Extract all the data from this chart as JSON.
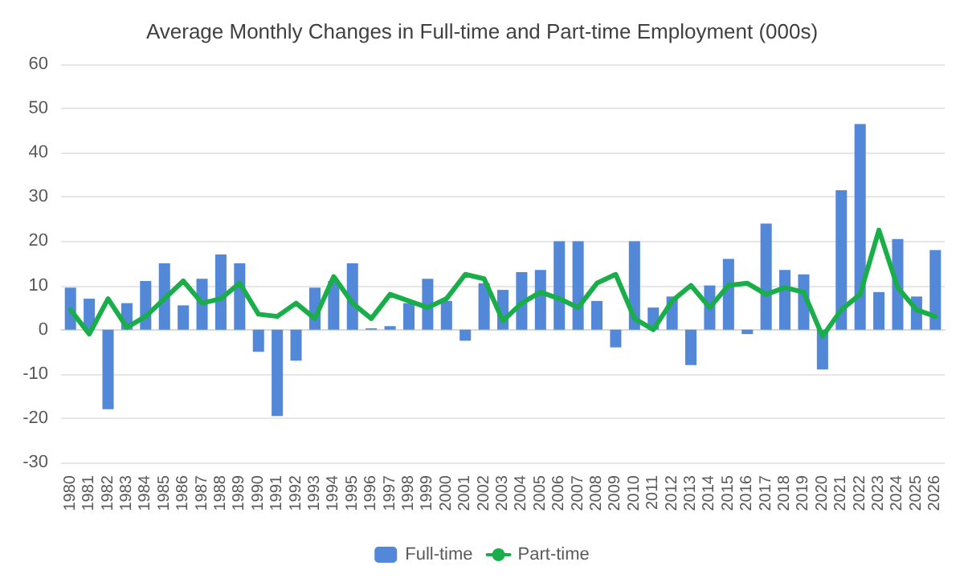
{
  "chart_data": {
    "type": "bar",
    "title": "Average Monthly Changes in Full-time and Part-time Employment (000s)",
    "categories": [
      "1980",
      "1981",
      "1982",
      "1983",
      "1984",
      "1985",
      "1986",
      "1987",
      "1988",
      "1989",
      "1990",
      "1991",
      "1992",
      "1993",
      "1994",
      "1995",
      "1996",
      "1997",
      "1998",
      "1999",
      "2000",
      "2001",
      "2002",
      "2003",
      "2004",
      "2005",
      "2006",
      "2007",
      "2008",
      "2009",
      "2010",
      "2011",
      "2012",
      "2013",
      "2014",
      "2015",
      "2016",
      "2017",
      "2018",
      "2019",
      "2020",
      "2021",
      "2022",
      "2023",
      "2024",
      "2025",
      "2026"
    ],
    "series": [
      {
        "name": "Full-time",
        "color": "#5388d8",
        "values": [
          9.5,
          7,
          -18,
          6,
          11,
          15,
          5.5,
          11.5,
          17,
          15,
          -5,
          -19.5,
          -7,
          9.5,
          11,
          15,
          0.3,
          0.8,
          6,
          11.5,
          6.5,
          -2.5,
          10.5,
          9,
          13,
          13.5,
          20,
          20,
          6.5,
          -4,
          20,
          5,
          7.5,
          -8,
          10,
          16,
          -1,
          24,
          13.5,
          12.5,
          -9,
          31.5,
          46.5,
          8.5,
          20.5,
          7.5,
          18
        ]
      },
      {
        "name": "Part-time",
        "type": "line",
        "color": "#1aae4a",
        "values": [
          4.5,
          -1,
          7,
          0.5,
          3,
          7,
          11,
          6,
          7,
          10.5,
          3.5,
          3,
          6,
          2.5,
          12,
          6,
          2.5,
          8,
          6.5,
          5,
          7,
          12.5,
          11.5,
          2,
          6,
          8.5,
          7,
          5,
          10.5,
          12.5,
          2.5,
          0,
          6.5,
          10,
          5,
          10,
          10.5,
          8,
          9.5,
          8.5,
          -1.5,
          4.5,
          8,
          22.5,
          9.5,
          4.5,
          3
        ]
      }
    ],
    "ylim": [
      -30,
      60
    ],
    "yticks": [
      -30,
      -20,
      -10,
      0,
      10,
      20,
      30,
      40,
      50,
      60
    ],
    "grid": "y",
    "legend": "bottom",
    "marker": "none",
    "line_style": "solid"
  }
}
